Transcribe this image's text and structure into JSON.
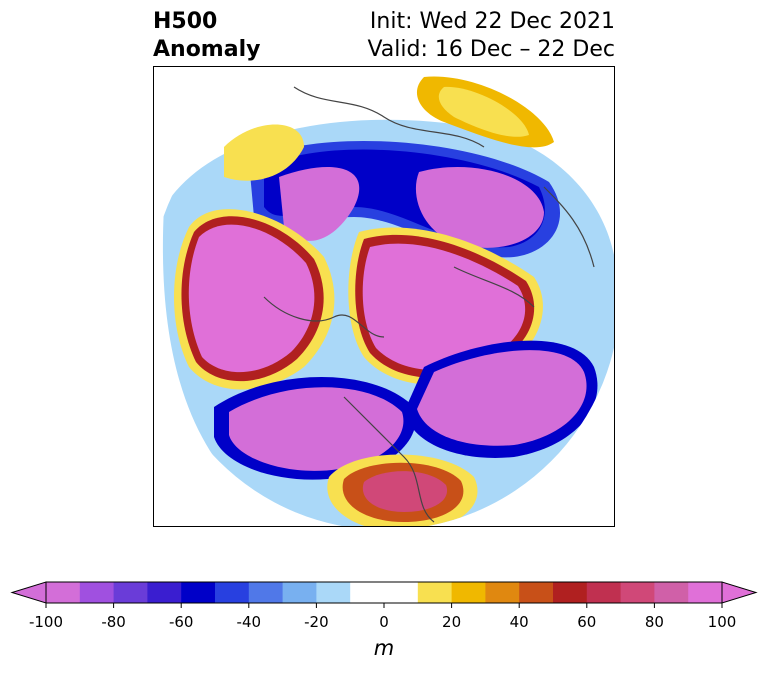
{
  "title": {
    "left_line1": "H500",
    "left_line2": "Anomaly",
    "init_text": "Init: Wed 22 Dec 2021",
    "valid_text": "Valid: 16 Dec – 22 Dec"
  },
  "colorbar": {
    "units": "m",
    "min": -100,
    "max": 100,
    "step": 10,
    "tick_values": [
      -100,
      -80,
      -60,
      -40,
      -20,
      0,
      20,
      40,
      60,
      80,
      100
    ],
    "tick_labels": [
      "-100",
      "-80",
      "-60",
      "-40",
      "-20",
      "0",
      "20",
      "40",
      "60",
      "80",
      "100"
    ],
    "colors": [
      "#d36ed8",
      "#a050e0",
      "#6a3cd8",
      "#3a1ed0",
      "#0000c8",
      "#2840e0",
      "#5078e8",
      "#78b0f0",
      "#aad8f8",
      "#ffffff",
      "#ffffff",
      "#f8e050",
      "#f0b800",
      "#e08810",
      "#c85018",
      "#b02020",
      "#c03050",
      "#d04878",
      "#d060a8",
      "#e070d8"
    ],
    "extend": "both"
  }
}
